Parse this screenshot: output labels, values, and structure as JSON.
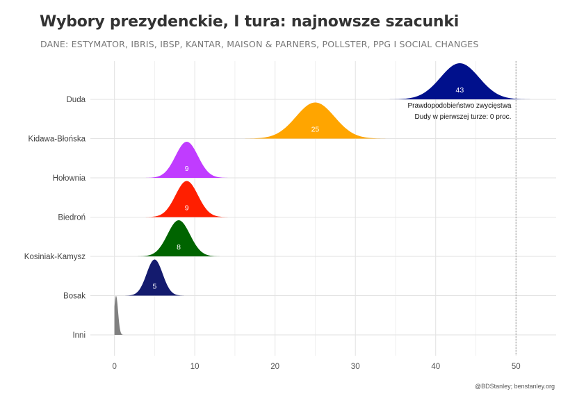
{
  "title": "Wybory prezydenckie, I tura: najnowsze szacunki",
  "subtitle": "DANE: ESTYMATOR, IBRIS, IBSP, KANTAR, MAISON & PARNERS, POLLSTER, PPG I SOCIAL CHANGES",
  "caption": "@BDStanley; benstanley.org",
  "chart_data": {
    "type": "area",
    "subtype": "ridgeline",
    "xlim": [
      -3,
      55
    ],
    "x_ticks": [
      0,
      10,
      20,
      30,
      40,
      50
    ],
    "grid": true,
    "threshold_line": 50,
    "series": [
      {
        "name": "Duda",
        "mean": 43,
        "sd": 2.4,
        "label": "43",
        "color": "#00108c"
      },
      {
        "name": "Kidawa-Błońska",
        "mean": 25,
        "sd": 2.4,
        "label": "25",
        "color": "#ffa500"
      },
      {
        "name": "Hołownia",
        "mean": 9,
        "sd": 1.4,
        "label": "9",
        "color": "#c03cff"
      },
      {
        "name": "Biedroń",
        "mean": 9,
        "sd": 1.4,
        "label": "9",
        "color": "#ff1f00"
      },
      {
        "name": "Kosiniak-Kamysz",
        "mean": 8,
        "sd": 1.4,
        "label": "8",
        "color": "#006400"
      },
      {
        "name": "Bosak",
        "mean": 5,
        "sd": 1.0,
        "label": "5",
        "color": "#141b6e"
      },
      {
        "name": "Inni",
        "mean": 0.2,
        "sd": 0.25,
        "label": "",
        "color": "#808080"
      }
    ],
    "annotation": {
      "line1": "Prawdopodobieństwo zwycięstwa",
      "line2": "Dudy w pierwszej turze: 0 proc."
    }
  }
}
